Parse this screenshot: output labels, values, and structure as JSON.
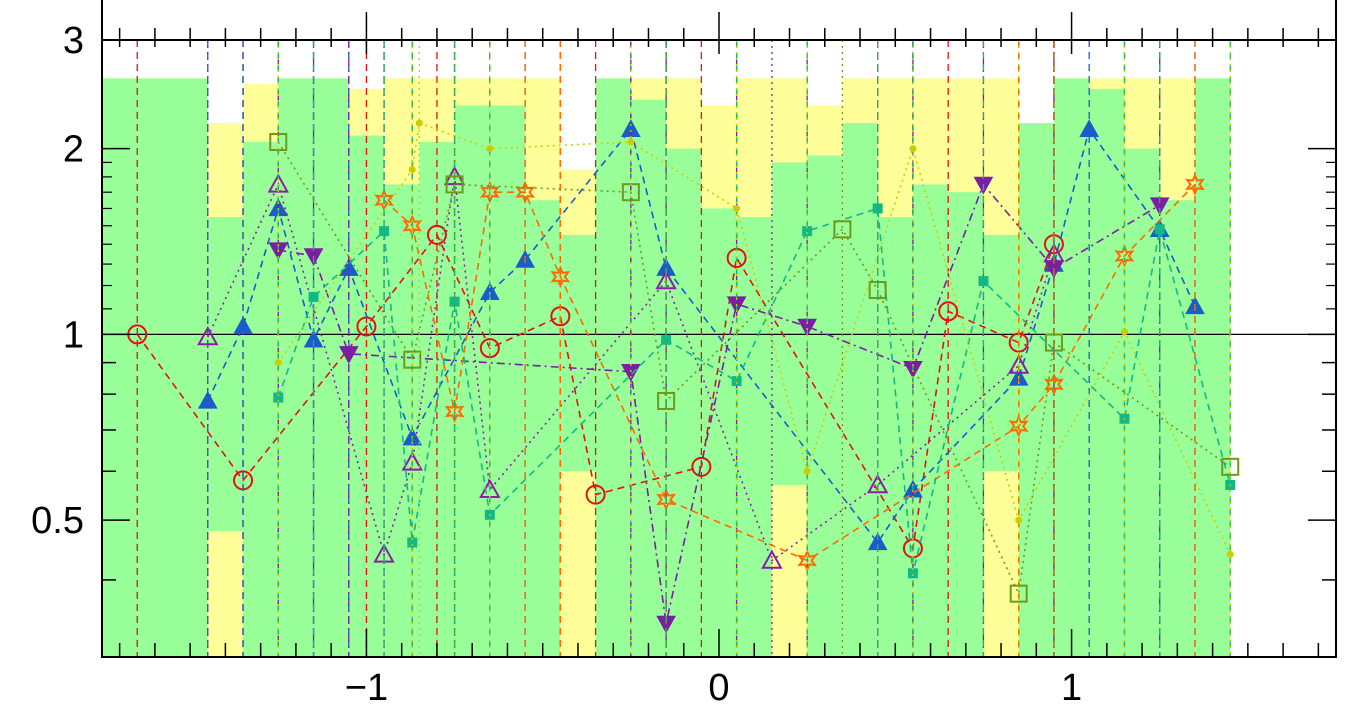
{
  "chart_data": {
    "type": "line",
    "title": "",
    "xlabel": "",
    "ylabel": "",
    "xlim": [
      -1.75,
      1.75
    ],
    "ylim": [
      0.3,
      3.0
    ],
    "yscale": "log",
    "x_ticks": [
      {
        "value": -1,
        "label": "−1"
      },
      {
        "value": 0,
        "label": "0"
      },
      {
        "value": 1,
        "label": "1"
      }
    ],
    "y_ticks": [
      {
        "value": 0.5,
        "label": "0.5"
      },
      {
        "value": 1,
        "label": "1"
      },
      {
        "value": 2,
        "label": "2"
      },
      {
        "value": 3,
        "label": "3"
      }
    ],
    "reference_line": 1,
    "grid": false,
    "legend": "none",
    "band_x": [
      -1.7,
      -1.6,
      -1.5,
      -1.4,
      -1.3,
      -1.2,
      -1.1,
      -1.0,
      -0.9,
      -0.8,
      -0.7,
      -0.6,
      -0.5,
      -0.4,
      -0.3,
      -0.2,
      -0.1,
      0.0,
      0.1,
      0.2,
      0.3,
      0.4,
      0.5,
      0.6,
      0.7,
      0.8,
      0.9,
      1.0,
      1.1,
      1.2,
      1.3,
      1.4
    ],
    "band_outer_top": [
      2.6,
      2.6,
      2.6,
      2.2,
      2.55,
      2.6,
      2.6,
      2.5,
      2.6,
      2.6,
      2.6,
      2.6,
      2.6,
      1.85,
      2.6,
      2.6,
      2.6,
      2.35,
      2.6,
      2.6,
      2.35,
      2.6,
      2.6,
      2.6,
      2.6,
      2.6,
      2.1,
      2.6,
      2.6,
      2.6,
      2.6,
      2.6
    ],
    "band_outer_bottom": [
      0.3,
      0.3,
      0.3,
      0.3,
      0.3,
      0.3,
      0.3,
      0.3,
      0.3,
      0.3,
      0.3,
      0.3,
      0.3,
      0.3,
      0.3,
      0.3,
      0.3,
      0.3,
      0.3,
      0.3,
      0.3,
      0.3,
      0.3,
      0.3,
      0.3,
      0.3,
      0.3,
      0.3,
      0.3,
      0.3,
      0.3,
      0.3
    ],
    "band_inner_top": [
      2.6,
      2.6,
      2.6,
      1.55,
      2.05,
      2.6,
      2.6,
      2.1,
      1.75,
      2.05,
      2.35,
      2.35,
      1.65,
      1.45,
      2.6,
      2.4,
      2.0,
      1.6,
      1.55,
      1.9,
      1.95,
      2.2,
      1.55,
      1.75,
      1.7,
      1.45,
      2.2,
      2.6,
      2.5,
      2.0,
      1.65,
      2.6
    ],
    "band_inner_bottom": [
      0.3,
      0.3,
      0.3,
      0.48,
      0.3,
      0.3,
      0.3,
      0.3,
      0.3,
      0.3,
      0.3,
      0.3,
      0.3,
      0.6,
      0.3,
      0.3,
      0.3,
      0.3,
      0.3,
      0.57,
      0.3,
      0.3,
      0.3,
      0.3,
      0.3,
      0.6,
      0.3,
      0.3,
      0.3,
      0.3,
      0.3,
      0.3
    ],
    "colors": {
      "band_outer": "#FFFF99",
      "band_inner": "#99FF99",
      "series_palette": [
        "#E11313",
        "#1A5CC9",
        "#8A1FA6",
        "#FF6A00",
        "#12B886",
        "#6C9A1C",
        "#CCCC00",
        "#4B2EA8"
      ]
    },
    "series": [
      {
        "marker": "circle-open",
        "color": "#E11313",
        "style": "dashed",
        "x": [
          -1.65,
          -1.35,
          -1.0,
          -0.8,
          -0.65,
          -0.45,
          -0.35,
          -0.05,
          0.05,
          0.55,
          0.65,
          0.85,
          0.95
        ],
        "y": [
          1.0,
          0.58,
          1.03,
          1.45,
          0.95,
          1.07,
          0.55,
          0.61,
          1.33,
          0.45,
          1.09,
          0.97,
          1.4
        ]
      },
      {
        "marker": "triangle-up-filled",
        "color": "#1A5CC9",
        "style": "dashed",
        "x": [
          -1.45,
          -1.35,
          -1.25,
          -1.15,
          -1.05,
          -0.87,
          -0.65,
          -0.55,
          -0.25,
          -0.15,
          0.45,
          0.55,
          0.85,
          0.95,
          1.05,
          1.25,
          1.35
        ],
        "y": [
          0.78,
          1.03,
          1.6,
          0.98,
          1.28,
          0.68,
          1.17,
          1.32,
          2.15,
          1.28,
          0.46,
          0.56,
          0.85,
          1.3,
          2.15,
          1.48,
          1.11
        ]
      },
      {
        "marker": "triangle-down-filled",
        "color": "#7B1FA2",
        "style": "dashdot",
        "x": [
          -1.25,
          -1.15,
          -1.05,
          -0.25,
          -0.15,
          0.05,
          0.25,
          0.55,
          0.75,
          0.95,
          1.25
        ],
        "y": [
          1.37,
          1.34,
          0.93,
          0.87,
          0.34,
          1.12,
          1.03,
          0.88,
          1.75,
          1.28,
          1.62
        ]
      },
      {
        "marker": "triangle-up-open",
        "color": "#8A1FA6",
        "style": "dotted",
        "x": [
          -1.45,
          -1.25,
          -0.95,
          -0.87,
          -0.75,
          -0.65,
          -0.15,
          0.15,
          0.45,
          0.85,
          0.95
        ],
        "y": [
          0.99,
          1.75,
          0.44,
          0.62,
          1.8,
          0.56,
          1.22,
          0.43,
          0.57,
          0.89,
          1.35
        ]
      },
      {
        "marker": "star-open",
        "color": "#FF6A00",
        "style": "dashed",
        "x": [
          -0.95,
          -0.87,
          -0.75,
          -0.65,
          -0.55,
          -0.45,
          -0.15,
          0.25,
          0.85,
          0.95,
          1.15,
          1.35
        ],
        "y": [
          1.65,
          1.5,
          0.75,
          1.7,
          1.7,
          1.24,
          0.54,
          0.43,
          0.71,
          0.83,
          1.34,
          1.75
        ]
      },
      {
        "marker": "square-filled",
        "color": "#12B886",
        "style": "dashed",
        "x": [
          -1.25,
          -1.15,
          -0.95,
          -0.87,
          -0.75,
          -0.65,
          -0.15,
          0.05,
          0.25,
          0.45,
          0.55,
          0.75,
          1.15,
          1.25,
          1.45
        ],
        "y": [
          0.79,
          1.15,
          1.47,
          0.46,
          1.13,
          0.51,
          0.98,
          0.84,
          1.47,
          1.6,
          0.41,
          1.22,
          0.73,
          1.48,
          0.57
        ]
      },
      {
        "marker": "square-open",
        "color": "#6C9A1C",
        "style": "dotted",
        "x": [
          -1.25,
          -0.87,
          -0.75,
          -0.25,
          -0.15,
          0.35,
          0.45,
          0.85,
          0.95,
          1.45
        ],
        "y": [
          2.05,
          0.91,
          1.75,
          1.7,
          0.78,
          1.48,
          1.18,
          0.38,
          0.97,
          0.61
        ]
      },
      {
        "marker": "dot-filled",
        "color": "#CCCC00",
        "style": "dotted",
        "x": [
          -1.25,
          -0.87,
          -0.85,
          -0.65,
          -0.25,
          0.05,
          0.25,
          0.55,
          0.85,
          1.15,
          1.45
        ],
        "y": [
          0.9,
          1.85,
          2.2,
          2.0,
          2.05,
          1.6,
          0.6,
          2.0,
          0.5,
          1.01,
          0.44
        ]
      }
    ]
  }
}
